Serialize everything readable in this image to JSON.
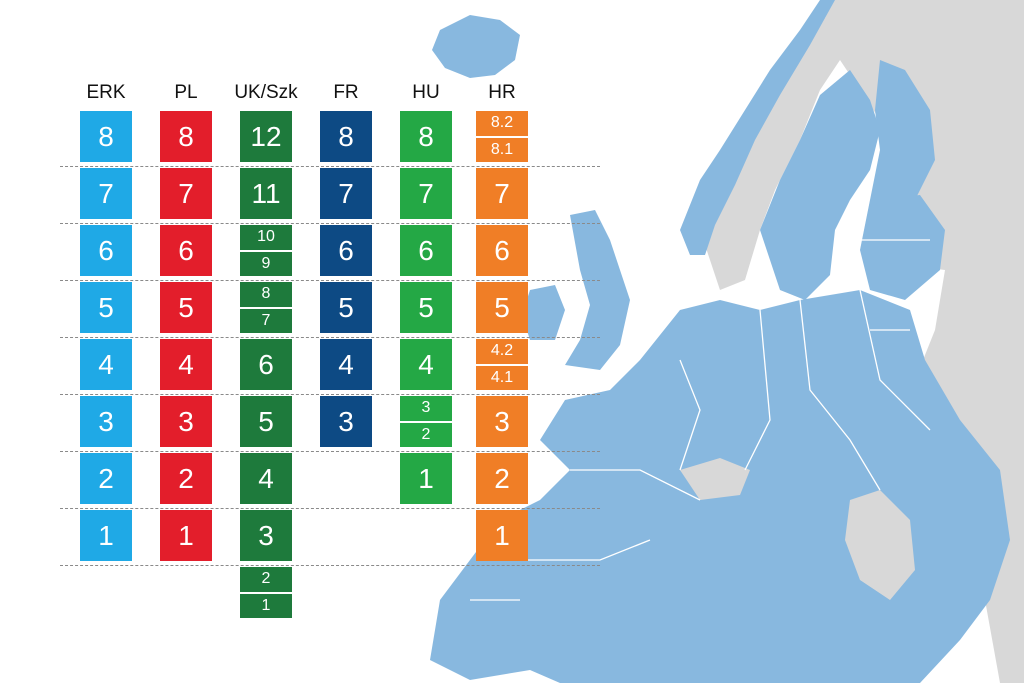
{
  "diagram": {
    "columns": [
      {
        "id": "erk",
        "header": "ERK",
        "color": "#1fa9e6",
        "levels": [
          "1",
          "2",
          "3",
          "4",
          "5",
          "6",
          "7",
          "8"
        ]
      },
      {
        "id": "pl",
        "header": "PL",
        "color": "#e31e2b",
        "levels": [
          "1",
          "2",
          "3",
          "4",
          "5",
          "6",
          "7",
          "8"
        ]
      },
      {
        "id": "uk",
        "header": "UK/Szk",
        "color": "#1e7a3c",
        "levels": [
          "1",
          "2",
          "3",
          "4",
          "5",
          "6",
          "7",
          "8",
          "9",
          "10",
          "11",
          "12"
        ]
      },
      {
        "id": "fr",
        "header": "FR",
        "color": "#0d4a84",
        "levels": [
          "3",
          "4",
          "5",
          "6",
          "7",
          "8"
        ]
      },
      {
        "id": "hu",
        "header": "HU",
        "color": "#24a845",
        "levels": [
          "1",
          "2",
          "3",
          "4",
          "5",
          "6",
          "7",
          "8"
        ]
      },
      {
        "id": "hr",
        "header": "HR",
        "color": "#f07e26",
        "levels": [
          "1",
          "2",
          "3",
          "4.1",
          "4.2",
          "5",
          "6",
          "7",
          "8.1",
          "8.2"
        ]
      }
    ],
    "map_colors": {
      "eu": "#88b8df",
      "non_eu": "#d8d8d8",
      "borders": "#ffffff"
    }
  }
}
